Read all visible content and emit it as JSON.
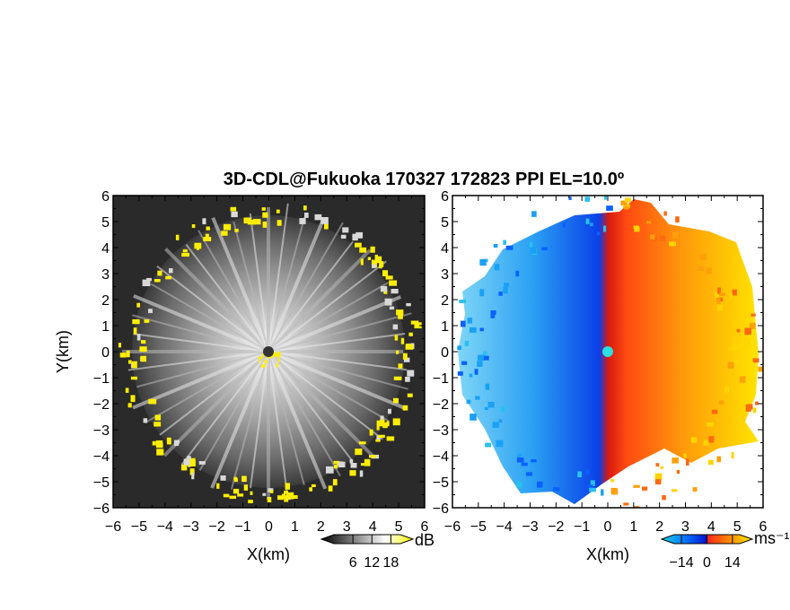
{
  "title": "3D-CDL@Fukuoka 170327 172823 PPI EL=10.0º",
  "chart_data": [
    {
      "type": "heatmap",
      "panel": "left",
      "variable": "reflectivity",
      "xlabel": "X(km)",
      "ylabel": "Y(km)",
      "xlim": [
        -6,
        6
      ],
      "ylim": [
        -6,
        6
      ],
      "xticks": [
        "−6",
        "−5",
        "−4",
        "−3",
        "−2",
        "−1",
        "0",
        "1",
        "2",
        "3",
        "4",
        "5",
        "6"
      ],
      "yticks": [
        "6",
        "5",
        "4",
        "3",
        "2",
        "1",
        "0",
        "−1",
        "−2",
        "−3",
        "−4",
        "−5",
        "−6"
      ],
      "colorbar": {
        "unit": "dB",
        "ticks": [
          "6",
          "12",
          "18"
        ],
        "range": [
          0,
          21
        ],
        "colors": [
          "#000000",
          "#ffffff",
          "#ffff00"
        ]
      },
      "description_values": {
        "echo_ring_radius_km": 5.2,
        "center_x": 0,
        "center_y": 0
      }
    },
    {
      "type": "heatmap",
      "panel": "right",
      "variable": "doppler_velocity",
      "xlabel": "X(km)",
      "xlim": [
        -6,
        6
      ],
      "ylim": [
        -6,
        6
      ],
      "xticks": [
        "−6",
        "−5",
        "−4",
        "−3",
        "−2",
        "−1",
        "0",
        "1",
        "2",
        "3",
        "4",
        "5",
        "6"
      ],
      "yticks": [
        "6",
        "5",
        "4",
        "3",
        "2",
        "1",
        "0",
        "−1",
        "−2",
        "−3",
        "−4",
        "−5",
        "−6"
      ],
      "colorbar": {
        "unit": "ms⁻¹",
        "ticks": [
          "−14",
          "0",
          "14"
        ],
        "range": [
          -18,
          18
        ],
        "colors": [
          "#18c8e8",
          "#0a64ff",
          "#0018d8",
          "#ff2a1a",
          "#ff8a00",
          "#ffe800"
        ]
      }
    }
  ]
}
